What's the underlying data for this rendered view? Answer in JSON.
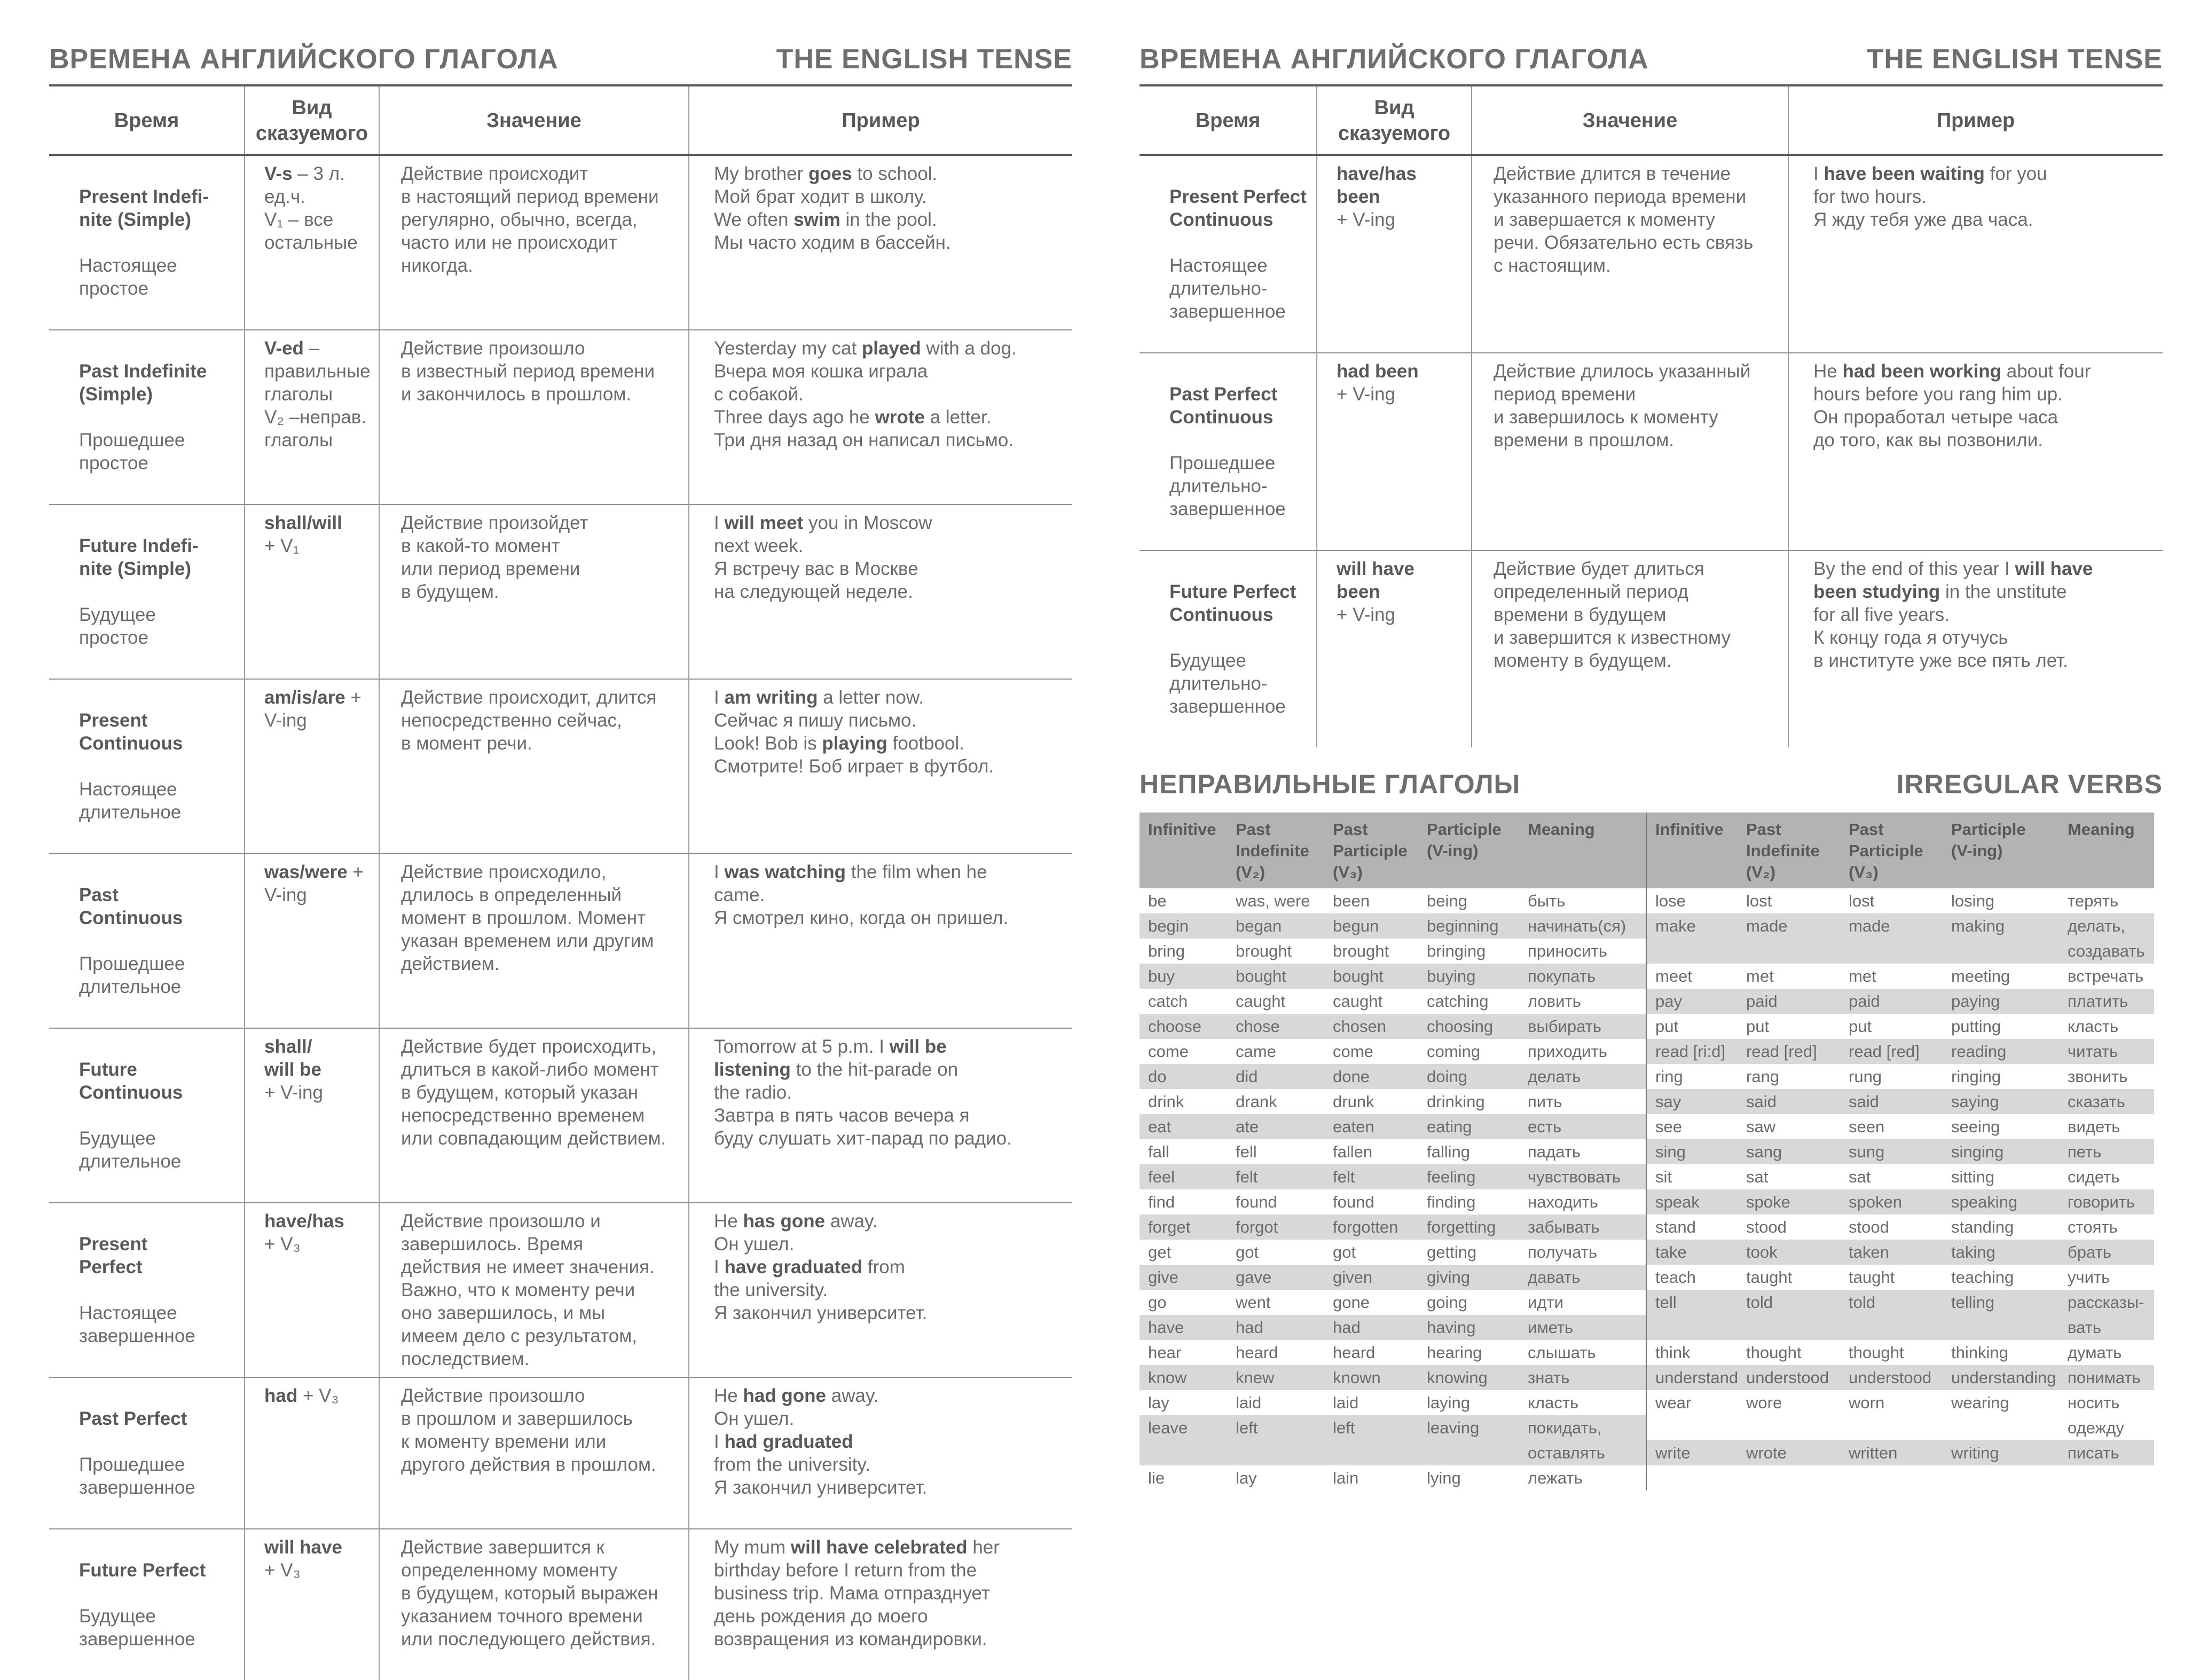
{
  "left_page": {
    "title_ru": "ВРЕМЕНА АНГЛИЙСКОГО ГЛАГОЛА",
    "title_en": "THE ENGLISH TENSE",
    "columns": {
      "time": "Время",
      "form": "Вид\nсказуемого",
      "meaning": "Значение",
      "example": "Пример"
    },
    "rows": [
      {
        "name_en": "Present Indefi-\nnite (Simple)",
        "name_ru": "Настоящее\nпростое",
        "form": "**V-s** – 3 л.\nед.ч.\nV₁ – все\nостальные",
        "meaning": "Действие происходит\nв настоящий период времени\nрегулярно, обычно, всегда,\nчасто или не происходит\nникогда.",
        "example": "My brother **goes** to school.\nМой брат ходит в школу.\nWe often **swim** in the pool.\nМы часто ходим в бассейн."
      },
      {
        "name_en": "Past Indefinite\n(Simple)",
        "name_ru": "Прошедшее\nпростое",
        "form": "**V-ed** –\nправильные\nглаголы\nV₂ –неправ.\nглаголы",
        "meaning": "Действие произошло\nв известный период времени\nи закончилось в прошлом.",
        "example": "Yesterday my cat **played** with a dog.\nВчера моя кошка играла\nс собакой.\nThree days ago he **wrote** a letter.\nТри дня назад он написал письмо."
      },
      {
        "name_en": "Future Indefi-\nnite (Simple)",
        "name_ru": "Будущее\nпростое",
        "form": "**shall/will**\n+ V₁",
        "meaning": "Действие произойдет\nв какой-то момент\nили период времени\nв будущем.",
        "example": "I **will meet** you in Moscow\nnext week.\nЯ встречу вас в Москве\nна следующей неделе."
      },
      {
        "name_en": "Present\nContinuous",
        "name_ru": "Настоящее\nдлительное",
        "form": "**am/is/are** +\nV-ing",
        "meaning": "Действие происходит, длится\nнепосредственно сейчас,\nв момент речи.",
        "example": "I **am writing** a letter now.\nСейчас я пишу письмо.\nLook! Bob is **playing** footbool.\nСмотрите! Боб играет в футбол."
      },
      {
        "name_en": "Past\nContinuous",
        "name_ru": "Прошедшее\nдлительное",
        "form": "**was/were** +\nV-ing",
        "meaning": "Действие происходило,\nдлилось в определенный\nмомент в прошлом. Момент\nуказан временем или другим\nдействием.",
        "example": "I **was watching** the film when he\ncame.\nЯ смотрел кино, когда он пришел."
      },
      {
        "name_en": "Future\nContinuous",
        "name_ru": "Будущее\nдлительное",
        "form": "**shall/\nwill be**\n+ V-ing",
        "meaning": "Действие будет происходить,\nдлиться в какой-либо момент\nв будущем, который указан\nнепосредственно временем\nили совпадающим действием.",
        "example": "Tomorrow at 5 p.m. I **will be\nlistening** to the hit-parade on\nthe radio.\nЗавтра в пять часов вечера я\nбуду слушать хит-парад по радио."
      },
      {
        "name_en": "Present\nPerfect",
        "name_ru": "Настоящее\nзавершенное",
        "form": "**have/has**\n+ V₃",
        "meaning": "Действие произошло и\nзавершилось. Время\nдействия не имеет значения.\nВажно, что к моменту речи\nоно завершилось, и мы\nимеем дело с результатом,\nпоследствием.",
        "example": "He **has gone** away.\nОн ушел.\nI **have graduated** from\nthe university.\nЯ закончил университет."
      },
      {
        "name_en": "Past Perfect",
        "name_ru": "Прошедшее\nзавершенное",
        "form": "**had** + V₃",
        "meaning": "Действие произошло\nв прошлом и завершилось\nк моменту времени или\nдругого действия в прошлом.",
        "example": "He **had gone** away.\nОн ушел.\nI **had graduated**\nfrom the university.\nЯ закончил университет."
      },
      {
        "name_en": "Future Perfect",
        "name_ru": "Будущее\nзавершенное",
        "form": "**will have**\n+ V₃",
        "meaning": "Действие завершится к\nопределенному моменту\nв будущем, который выражен\nуказанием точного времени\nили последующего действия.",
        "example": "My mum **will have celebrated** her\nbirthday before I return from the\nbusiness trip. Мама отпразднует\nдень рождения до моего\nвозвращения из командировки."
      }
    ]
  },
  "right_page": {
    "title_ru": "ВРЕМЕНА АНГЛИЙСКОГО ГЛАГОЛА",
    "title_en": "THE ENGLISH TENSE",
    "columns": {
      "time": "Время",
      "form": "Вид\nсказуемого",
      "meaning": "Значение",
      "example": "Пример"
    },
    "rows": [
      {
        "name_en": "Present Perfect\nContinuous",
        "name_ru": "Настоящее\nдлительно-\nзавершенное",
        "form": "**have/has\nbeen**\n+ V-ing",
        "meaning": "Действие длится в течение\nуказанного периода времени\nи завершается к моменту\nречи. Обязательно есть связь\nс настоящим.",
        "example": "I **have been waiting** for you\nfor two hours.\nЯ жду тебя уже два часа."
      },
      {
        "name_en": "Past Perfect\nContinuous",
        "name_ru": "Прошедшее\nдлительно-\nзавершенное",
        "form": "**had been**\n+ V-ing",
        "meaning": "Действие длилось указанный\nпериод времени\nи завершилось к моменту\nвремени в прошлом.",
        "example": "He **had been working** about four\nhours before you rang him up.\nОн проработал четыре часа\nдо того, как вы позвонили."
      },
      {
        "name_en": "Future Perfect\nContinuous",
        "name_ru": "Будущее\nдлительно-\nзавершенное",
        "form": "**will have\nbeen**\n+ V-ing",
        "meaning": "Действие будет длиться\nопределенный период\nвремени в будущем\nи завершится к известному\nмоменту в будущем.",
        "example": "By the end of this year I **will have\nbeen studying** in the unstitute\nfor all five years.\nК концу года я отучусь\nв институте уже все пять лет."
      }
    ],
    "irregular": {
      "heading_ru": "НЕПРАВИЛЬНЫЕ ГЛАГОЛЫ",
      "heading_en": "IRREGULAR VERBS",
      "columns": [
        "Infinitive",
        "Past\nIndefinite\n(V₂)",
        "Past\nParticiple\n(V₃)",
        "Participle\n(V-ing)",
        "Meaning"
      ],
      "left_rows": [
        [
          "be",
          "was, were",
          "been",
          "being",
          "быть"
        ],
        [
          "begin",
          "began",
          "begun",
          "beginning",
          "начинать(ся)"
        ],
        [
          "bring",
          "brought",
          "brought",
          "bringing",
          "приносить"
        ],
        [
          "buy",
          "bought",
          "bought",
          "buying",
          "покупать"
        ],
        [
          "catch",
          "caught",
          "caught",
          "catching",
          "ловить"
        ],
        [
          "choose",
          "chose",
          "chosen",
          "choosing",
          "выбирать"
        ],
        [
          "come",
          "came",
          "come",
          "coming",
          "приходить"
        ],
        [
          "do",
          "did",
          "done",
          "doing",
          "делать"
        ],
        [
          "drink",
          "drank",
          "drunk",
          "drinking",
          "пить"
        ],
        [
          "eat",
          "ate",
          "eaten",
          "eating",
          "есть"
        ],
        [
          "fall",
          "fell",
          "fallen",
          "falling",
          "падать"
        ],
        [
          "feel",
          "felt",
          "felt",
          "feeling",
          "чувствовать"
        ],
        [
          "find",
          "found",
          "found",
          "finding",
          "находить"
        ],
        [
          "forget",
          "forgot",
          "forgotten",
          "forgetting",
          "забывать"
        ],
        [
          "get",
          "got",
          "got",
          "getting",
          "получать"
        ],
        [
          "give",
          "gave",
          "given",
          "giving",
          "давать"
        ],
        [
          "go",
          "went",
          "gone",
          "going",
          "идти"
        ],
        [
          "have",
          "had",
          "had",
          "having",
          "иметь"
        ],
        [
          "hear",
          "heard",
          "heard",
          "hearing",
          "слышать"
        ],
        [
          "know",
          "knew",
          "known",
          "knowing",
          "знать"
        ],
        [
          "lay",
          "laid",
          "laid",
          "laying",
          "класть"
        ],
        [
          "leave",
          "left",
          "left",
          "leaving",
          "покидать,\nоставлять"
        ],
        [
          "lie",
          "lay",
          "lain",
          "lying",
          "лежать"
        ]
      ],
      "right_rows": [
        [
          "lose",
          "lost",
          "lost",
          "losing",
          "терять"
        ],
        [
          "make",
          "made",
          "made",
          "making",
          "делать,\nсоздавать"
        ],
        [
          "meet",
          "met",
          "met",
          "meeting",
          "встречать"
        ],
        [
          "pay",
          "paid",
          "paid",
          "paying",
          "платить"
        ],
        [
          "put",
          "put",
          "put",
          "putting",
          "класть"
        ],
        [
          "read [ri:d]",
          "read [red]",
          "read [red]",
          "reading",
          "читать"
        ],
        [
          "ring",
          "rang",
          "rung",
          "ringing",
          "звонить"
        ],
        [
          "say",
          "said",
          "said",
          "saying",
          "сказать"
        ],
        [
          "see",
          "saw",
          "seen",
          "seeing",
          "видеть"
        ],
        [
          "sing",
          "sang",
          "sung",
          "singing",
          "петь"
        ],
        [
          "sit",
          "sat",
          "sat",
          "sitting",
          "сидеть"
        ],
        [
          "speak",
          "spoke",
          "spoken",
          "speaking",
          "говорить"
        ],
        [
          "stand",
          "stood",
          "stood",
          "standing",
          "стоять"
        ],
        [
          "take",
          "took",
          "taken",
          "taking",
          "брать"
        ],
        [
          "teach",
          "taught",
          "taught",
          "teaching",
          "учить"
        ],
        [
          "tell",
          "told",
          "told",
          "telling",
          "рассказы-\nвать"
        ],
        [
          "think",
          "thought",
          "thought",
          "thinking",
          "думать"
        ],
        [
          "understand",
          "understood",
          "understood",
          "understanding",
          "понимать"
        ],
        [
          "wear",
          "wore",
          "worn",
          "wearing",
          "носить\nодежду"
        ],
        [
          "write",
          "wrote",
          "written",
          "writing",
          "писать"
        ]
      ]
    }
  }
}
